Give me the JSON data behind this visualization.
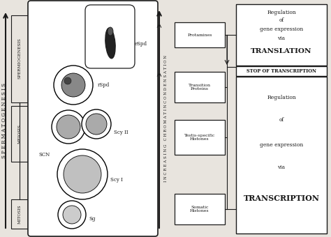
{
  "bg_color": "#e8e4de",
  "left_label": "S P E R M A T O G E N E S I S",
  "arrow_label": "I N C R E A S I N G   C H R O M A T I N C O N D E N S A T I O N",
  "stages": [
    "SPERMIOGENESIS",
    "MEIOSIS",
    "MITOSIS"
  ],
  "cell_labels": [
    "eSpd",
    "rSpd",
    "Scy II",
    "SCN",
    "Scy I",
    "Sg"
  ],
  "boxes_left": [
    "Protamines",
    "Transition\nProteins",
    "Testis-specific\nHistones",
    "Somatic\nHistones"
  ],
  "box_right_top_lines": [
    "Regulation",
    "of",
    "gene expression",
    "via",
    "TRANSLATION"
  ],
  "stop_label": "STOP OF TRANSCRIPTION",
  "box_right_bottom_lines": [
    "Regulation",
    "",
    "of",
    "",
    "gene expression",
    "",
    "via",
    "",
    "TRANSCRIPTION"
  ],
  "line_color": "#1a1a1a",
  "text_color": "#1a1a1a"
}
